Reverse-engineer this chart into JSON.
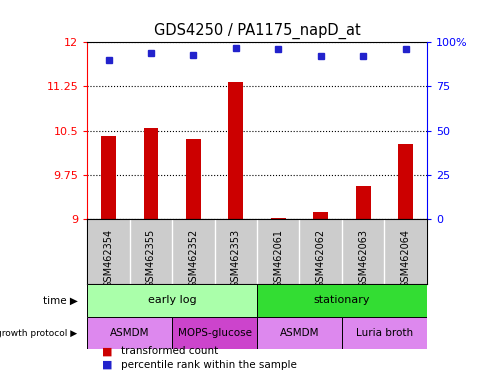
{
  "title": "GDS4250 / PA1175_napD_at",
  "samples": [
    "GSM462354",
    "GSM462355",
    "GSM462352",
    "GSM462353",
    "GSM462061",
    "GSM462062",
    "GSM462063",
    "GSM462064"
  ],
  "transformed_counts": [
    10.4,
    10.55,
    10.35,
    11.33,
    9.02,
    9.12,
    9.55,
    10.28
  ],
  "percentile_ranks": [
    90,
    94,
    93,
    97,
    96,
    92,
    92,
    96
  ],
  "ymin": 9.0,
  "ymax": 12.0,
  "yticks": [
    9,
    9.75,
    10.5,
    11.25,
    12
  ],
  "ytick_labels": [
    "9",
    "9.75",
    "10.5",
    "11.25",
    "12"
  ],
  "right_yticks": [
    0,
    25,
    50,
    75,
    100
  ],
  "right_ytick_labels": [
    "0",
    "25",
    "50",
    "75",
    "100%"
  ],
  "bar_color": "#cc0000",
  "dot_color": "#2222cc",
  "time_groups": [
    {
      "label": "early log",
      "start": 0,
      "end": 4,
      "color": "#aaffaa"
    },
    {
      "label": "stationary",
      "start": 4,
      "end": 8,
      "color": "#33dd33"
    }
  ],
  "protocol_groups": [
    {
      "label": "ASMDM",
      "start": 0,
      "end": 2,
      "color": "#dd88ee"
    },
    {
      "label": "MOPS-glucose",
      "start": 2,
      "end": 4,
      "color": "#cc44cc"
    },
    {
      "label": "ASMDM",
      "start": 4,
      "end": 6,
      "color": "#dd88ee"
    },
    {
      "label": "Luria broth",
      "start": 6,
      "end": 8,
      "color": "#dd88ee"
    }
  ],
  "legend_items": [
    {
      "label": "transformed count",
      "color": "#cc0000"
    },
    {
      "label": "percentile rank within the sample",
      "color": "#2222cc"
    }
  ],
  "label_bg_color": "#cccccc",
  "left_label_time": "time",
  "left_label_proto": "growth protocol"
}
